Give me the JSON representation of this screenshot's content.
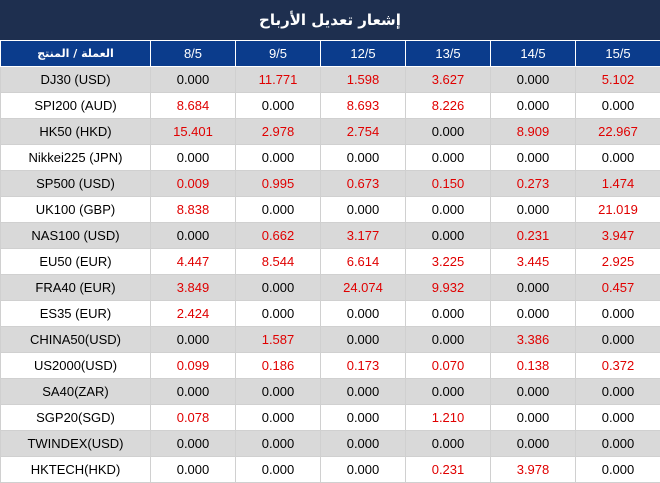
{
  "title": "إشعار تعديل الأرباح",
  "header": {
    "instrument": "العملة / المنتج",
    "dates": [
      "8/5",
      "9/5",
      "12/5",
      "13/5",
      "14/5",
      "15/5"
    ]
  },
  "colors": {
    "header_bg": "#0b3c8c",
    "title_bg": "#1e2f4f",
    "positive": "#e00000",
    "zero": "#000000",
    "row_alt": "#d9d9d9"
  },
  "rows": [
    {
      "instrument": "DJ30 (USD)",
      "values": [
        "0.000",
        "11.771",
        "1.598",
        "3.627",
        "0.000",
        "5.102"
      ]
    },
    {
      "instrument": "SPI200 (AUD)",
      "values": [
        "8.684",
        "0.000",
        "8.693",
        "8.226",
        "0.000",
        "0.000"
      ]
    },
    {
      "instrument": "HK50 (HKD)",
      "values": [
        "15.401",
        "2.978",
        "2.754",
        "0.000",
        "8.909",
        "22.967"
      ]
    },
    {
      "instrument": "Nikkei225 (JPN)",
      "values": [
        "0.000",
        "0.000",
        "0.000",
        "0.000",
        "0.000",
        "0.000"
      ]
    },
    {
      "instrument": "SP500 (USD)",
      "values": [
        "0.009",
        "0.995",
        "0.673",
        "0.150",
        "0.273",
        "1.474"
      ]
    },
    {
      "instrument": "UK100 (GBP)",
      "values": [
        "8.838",
        "0.000",
        "0.000",
        "0.000",
        "0.000",
        "21.019"
      ]
    },
    {
      "instrument": "NAS100 (USD)",
      "values": [
        "0.000",
        "0.662",
        "3.177",
        "0.000",
        "0.231",
        "3.947"
      ]
    },
    {
      "instrument": "EU50 (EUR)",
      "values": [
        "4.447",
        "8.544",
        "6.614",
        "3.225",
        "3.445",
        "2.925"
      ]
    },
    {
      "instrument": "FRA40 (EUR)",
      "values": [
        "3.849",
        "0.000",
        "24.074",
        "9.932",
        "0.000",
        "0.457"
      ]
    },
    {
      "instrument": "ES35 (EUR)",
      "values": [
        "2.424",
        "0.000",
        "0.000",
        "0.000",
        "0.000",
        "0.000"
      ]
    },
    {
      "instrument": "CHINA50(USD)",
      "values": [
        "0.000",
        "1.587",
        "0.000",
        "0.000",
        "3.386",
        "0.000"
      ]
    },
    {
      "instrument": "US2000(USD)",
      "values": [
        "0.099",
        "0.186",
        "0.173",
        "0.070",
        "0.138",
        "0.372"
      ]
    },
    {
      "instrument": "SA40(ZAR)",
      "values": [
        "0.000",
        "0.000",
        "0.000",
        "0.000",
        "0.000",
        "0.000"
      ]
    },
    {
      "instrument": "SGP20(SGD)",
      "values": [
        "0.078",
        "0.000",
        "0.000",
        "1.210",
        "0.000",
        "0.000"
      ]
    },
    {
      "instrument": "TWINDEX(USD)",
      "values": [
        "0.000",
        "0.000",
        "0.000",
        "0.000",
        "0.000",
        "0.000"
      ]
    },
    {
      "instrument": "HKTECH(HKD)",
      "values": [
        "0.000",
        "0.000",
        "0.000",
        "0.231",
        "3.978",
        "0.000"
      ]
    }
  ]
}
